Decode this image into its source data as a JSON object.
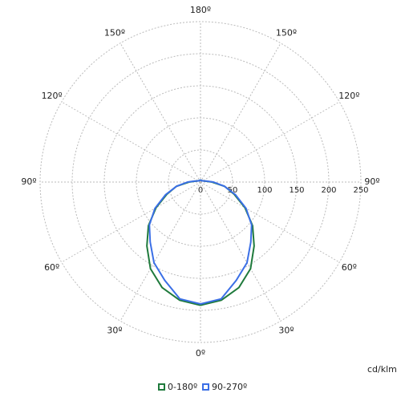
{
  "chart_data": {
    "type": "polar",
    "theta": [
      0,
      10,
      20,
      30,
      40,
      50,
      60,
      70,
      80,
      90,
      100,
      110,
      120,
      130,
      140,
      150,
      160,
      170,
      180
    ],
    "series": [
      {
        "name": "0-180º",
        "color": "#1f7a3c",
        "values": [
          192,
          187,
          175,
          156,
          130,
          106,
          80,
          56,
          38,
          18,
          8,
          5,
          4,
          3,
          3,
          3,
          3,
          3,
          3
        ]
      },
      {
        "name": "90-270º",
        "color": "#3b6fe6",
        "values": [
          190,
          185,
          163,
          145,
          122,
          104,
          82,
          58,
          38,
          20,
          9,
          5,
          4,
          3,
          3,
          3,
          3,
          3,
          3
        ]
      }
    ],
    "rlim": [
      0,
      250
    ],
    "rticks": [
      0,
      50,
      100,
      150,
      200,
      250
    ],
    "thetaticks": [
      {
        "value": 0,
        "label": "0º"
      },
      {
        "value": 30,
        "label": "30º"
      },
      {
        "value": 60,
        "label": "60º"
      },
      {
        "value": 90,
        "label": "90º"
      },
      {
        "value": 120,
        "label": "120º"
      },
      {
        "value": 150,
        "label": "150º"
      },
      {
        "value": 180,
        "label": "180º"
      }
    ],
    "unit_label": "cd/klm",
    "grid": true
  }
}
